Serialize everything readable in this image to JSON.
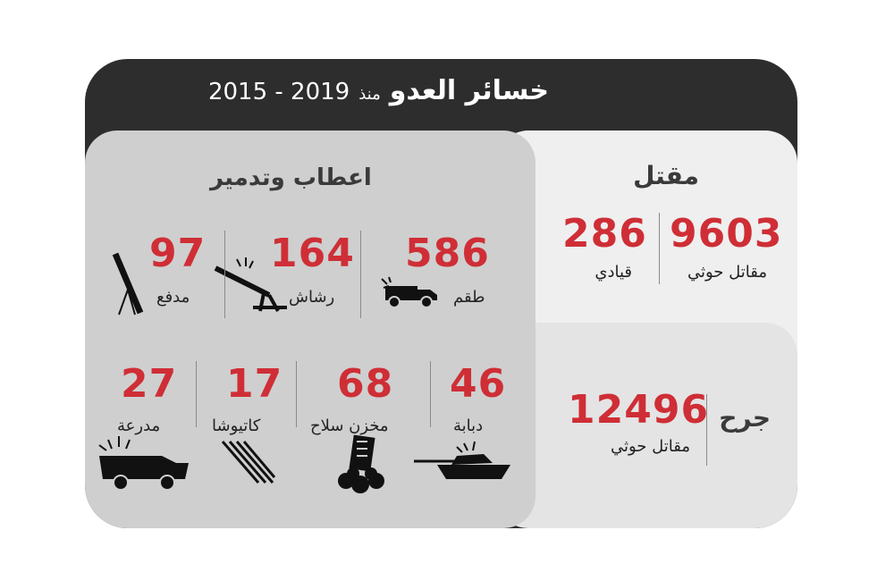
{
  "header": {
    "title": "خسائر العدو",
    "since": "منذ",
    "years": "2015 - 2019"
  },
  "killed": {
    "label": "مقتل",
    "houthi_fighters": {
      "value": "9603",
      "label": "مقاتل حوثي"
    },
    "leaders": {
      "value": "286",
      "label": "قيادي"
    }
  },
  "wounded": {
    "label": "جرح",
    "houthi_fighters": {
      "value": "12496",
      "label": "مقاتل حوثي"
    }
  },
  "destroyed": {
    "label": "اعطاب وتدمير",
    "items": [
      {
        "value": "586",
        "label": "طقم",
        "icon": "pickup-truck-icon"
      },
      {
        "value": "164",
        "label": "رشاش",
        "icon": "machine-gun-icon"
      },
      {
        "value": "97",
        "label": "مدفع",
        "icon": "mortar-icon"
      },
      {
        "value": "46",
        "label": "دبابة",
        "icon": "tank-icon"
      },
      {
        "value": "68",
        "label": "مخزن سلاح",
        "icon": "weapons-depot-icon"
      },
      {
        "value": "17",
        "label": "كاتيوشا",
        "icon": "katyusha-icon"
      },
      {
        "value": "27",
        "label": "مدرعة",
        "icon": "armored-vehicle-icon"
      }
    ]
  },
  "colors": {
    "accent": "#cf2e36",
    "header_bg": "#2d2d2d",
    "left_panel": "#cfcfcf",
    "right_panel_top": "#efefef",
    "right_panel_bottom": "#e4e4e4"
  }
}
